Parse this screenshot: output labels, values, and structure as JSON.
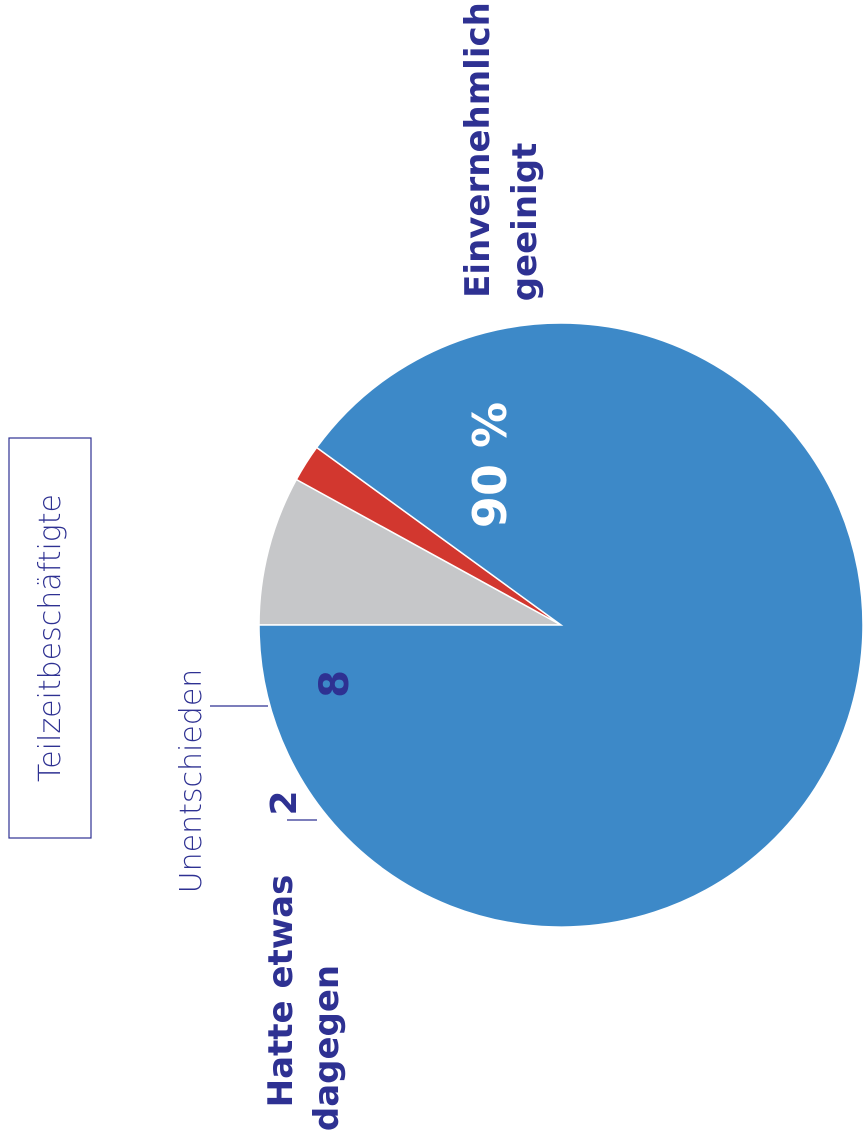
{
  "chart_data": {
    "type": "pie",
    "title": "Teilzeitbeschäftigte",
    "slices": [
      {
        "label": "Einvernehmlich geeinigt",
        "label_lines": [
          "Einvernehmlich",
          "geeinigt"
        ],
        "value": 90,
        "value_label": "90 %",
        "color": "#3d89c8"
      },
      {
        "label": "Unentschieden",
        "label_lines": [
          "Unentschieden"
        ],
        "value": 8,
        "value_label": "8",
        "color": "#c6c7c9"
      },
      {
        "label": "Hatte etwas dagegen",
        "label_lines": [
          "Hatte etwas",
          "dagegen"
        ],
        "value": 2,
        "value_label": "2",
        "color": "#d2372f"
      }
    ],
    "legend": "none",
    "orientation": "rotated-90-ccw"
  },
  "colors": {
    "text_dark": "#2e3192",
    "text_on_slice": "#ffffff"
  }
}
